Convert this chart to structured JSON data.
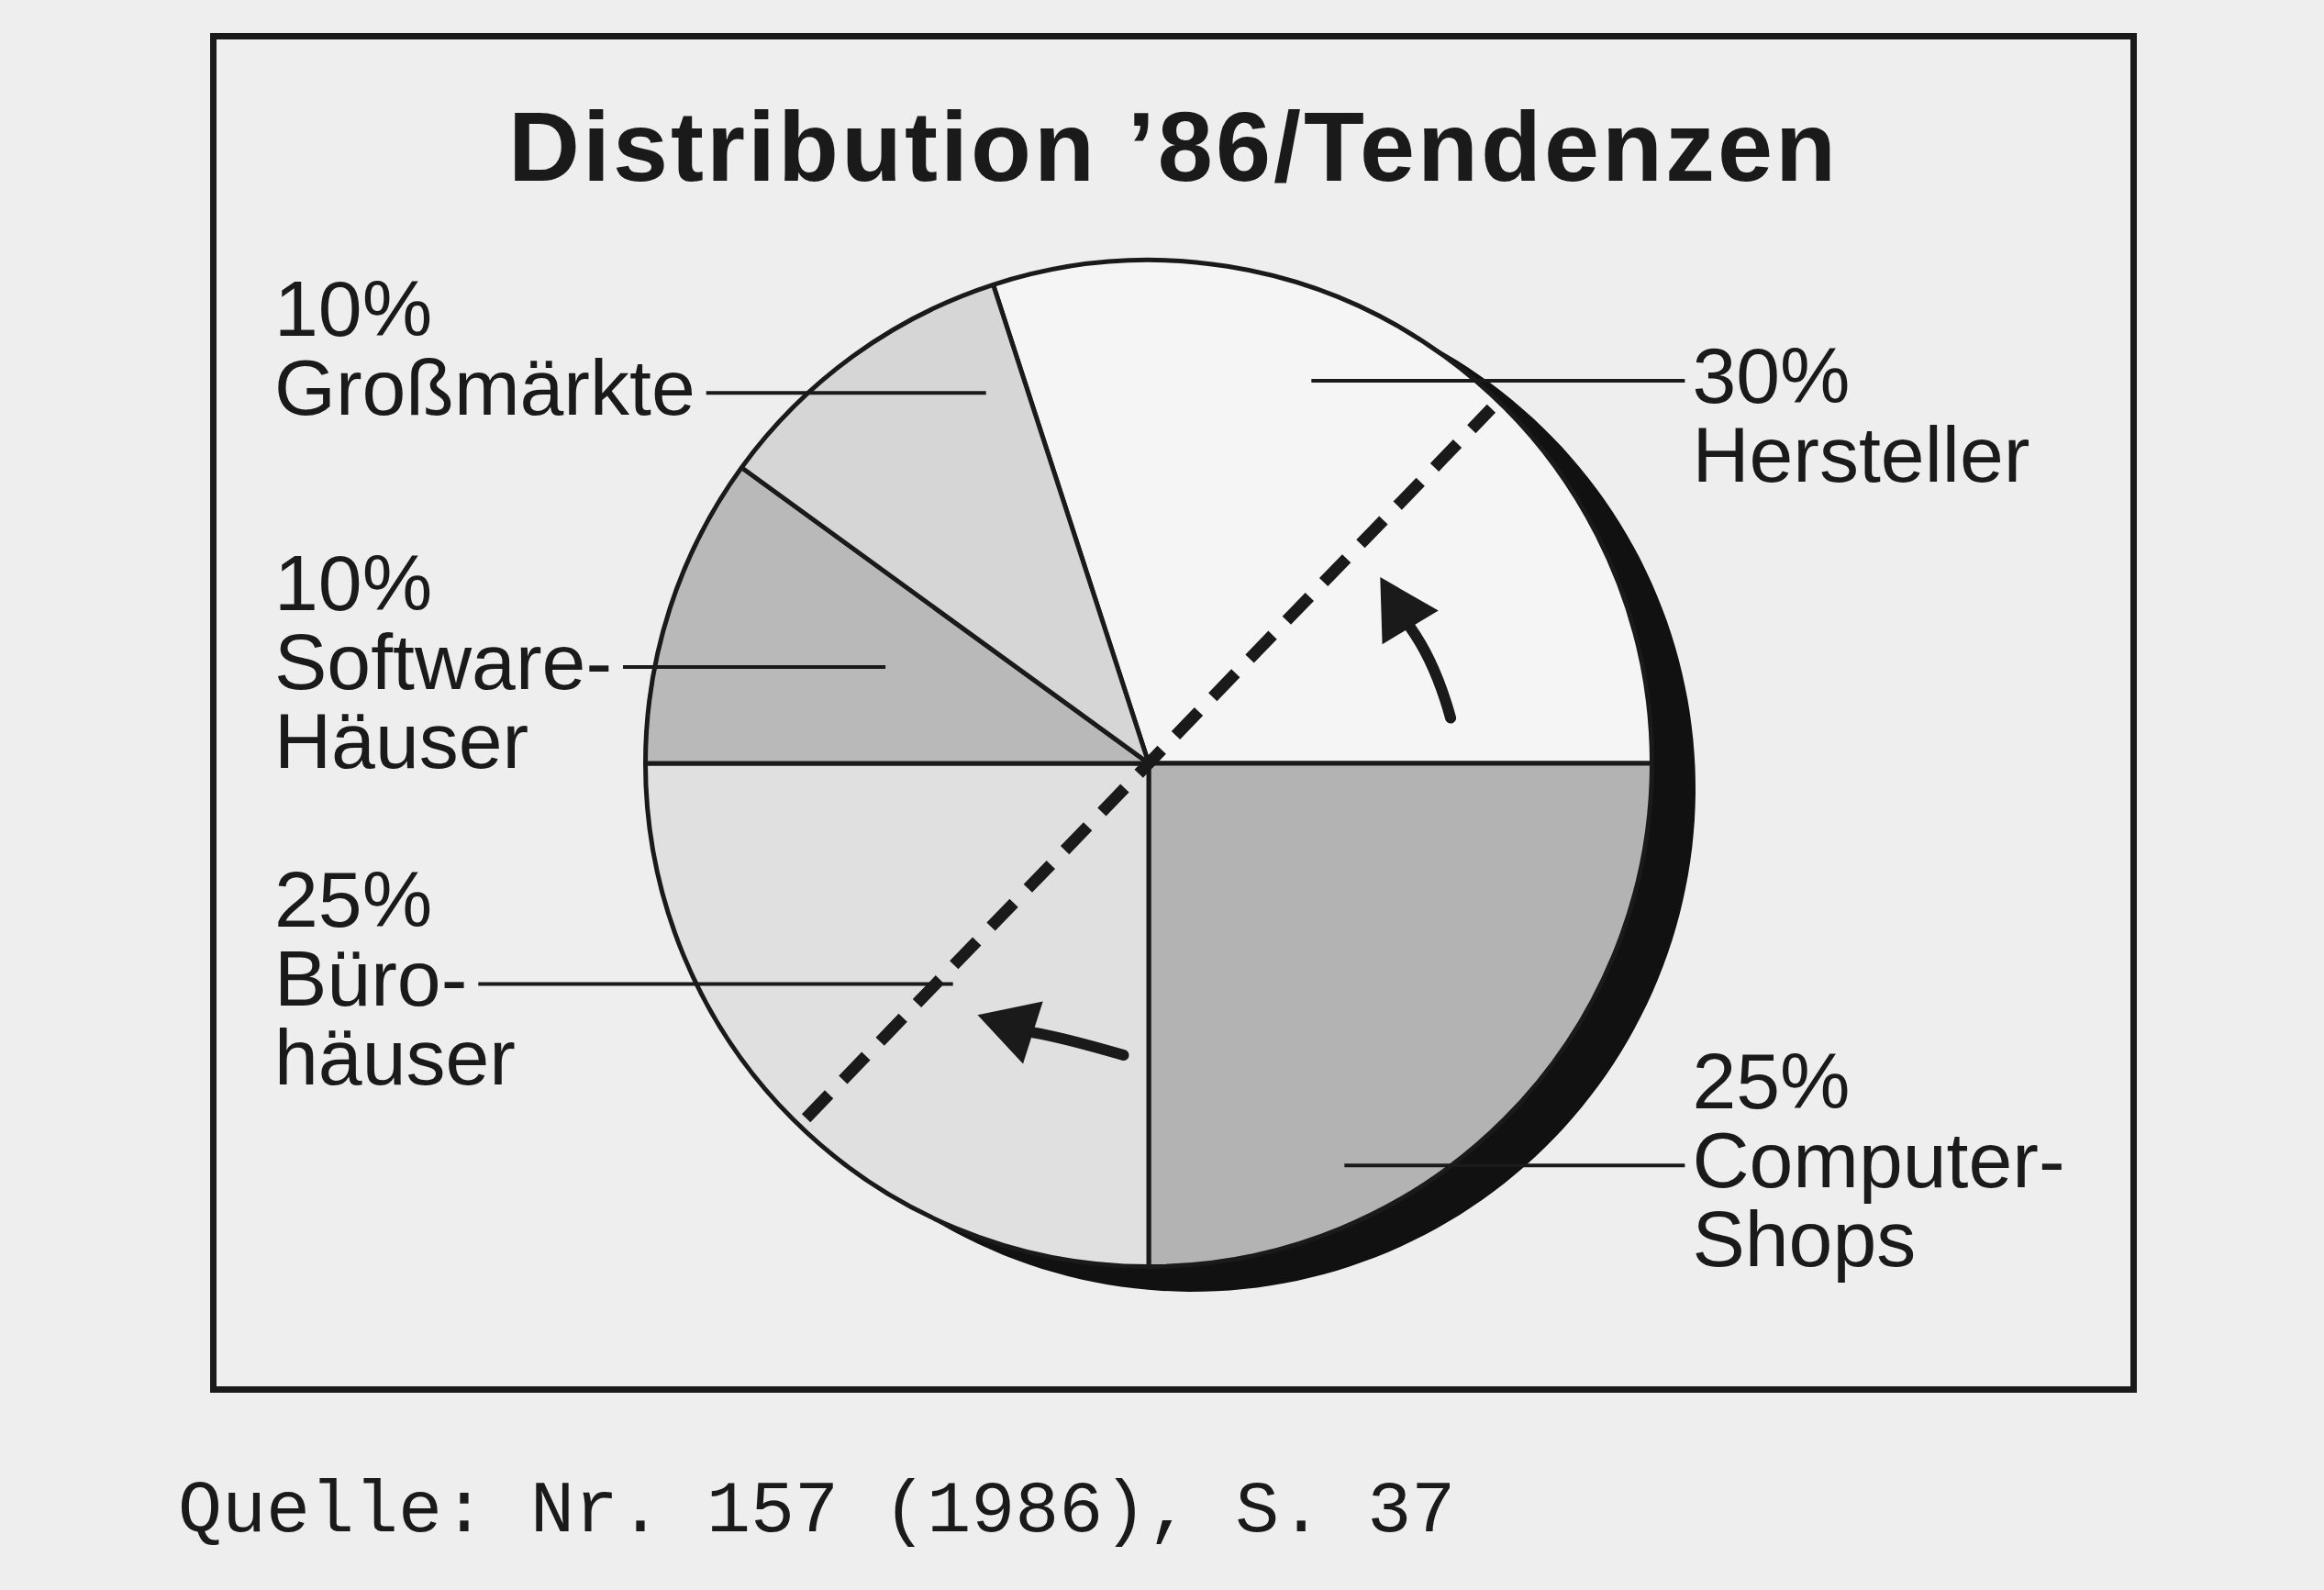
{
  "chart_data": {
    "type": "pie",
    "title": "Distribution ’86/Tendenzen",
    "categories": [
      "Hersteller",
      "Computer-Shops",
      "Büro-häuser",
      "Software-Häuser",
      "Großmärkte"
    ],
    "values": [
      30,
      25,
      25,
      10,
      10
    ],
    "colors": [
      "#f5f5f5",
      "#b3b3b3",
      "#e0e0e0",
      "#b9b9b9",
      "#d6d6d6"
    ],
    "value_labels": [
      "30%",
      "25%",
      "25%",
      "10%",
      "10%"
    ],
    "annotations": [
      "Quelle: Nr. 157 (1986), S. 37"
    ]
  }
}
